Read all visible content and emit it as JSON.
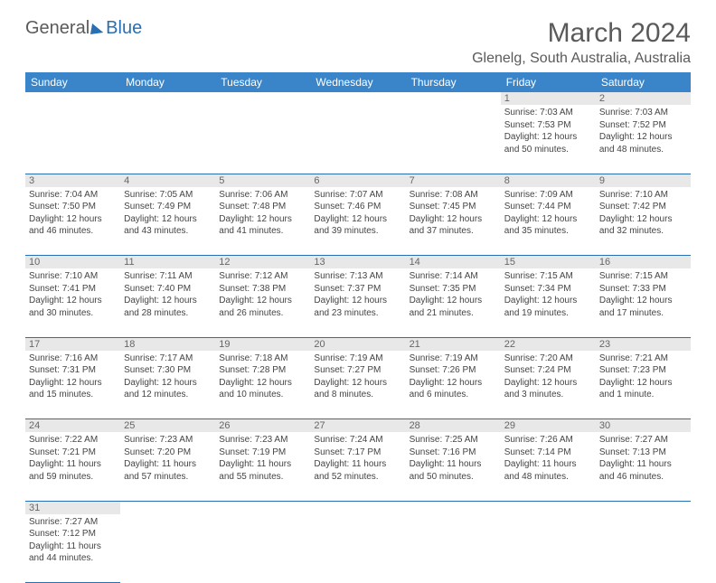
{
  "logo": {
    "general": "General",
    "blue": "Blue"
  },
  "title": "March 2024",
  "location": "Glenelg, South Australia, Australia",
  "colors": {
    "header_bg": "#3a85c9",
    "header_text": "#ffffff",
    "daynum_bg": "#e8e8e8",
    "row_border": "#2a6fb0",
    "body_text": "#444444",
    "title_text": "#5a5a5a"
  },
  "day_headers": [
    "Sunday",
    "Monday",
    "Tuesday",
    "Wednesday",
    "Thursday",
    "Friday",
    "Saturday"
  ],
  "weeks": [
    {
      "nums": [
        "",
        "",
        "",
        "",
        "",
        "1",
        "2"
      ],
      "cells": [
        null,
        null,
        null,
        null,
        null,
        {
          "sunrise": "7:03 AM",
          "sunset": "7:53 PM",
          "daylight": "12 hours and 50 minutes."
        },
        {
          "sunrise": "7:03 AM",
          "sunset": "7:52 PM",
          "daylight": "12 hours and 48 minutes."
        }
      ]
    },
    {
      "nums": [
        "3",
        "4",
        "5",
        "6",
        "7",
        "8",
        "9"
      ],
      "cells": [
        {
          "sunrise": "7:04 AM",
          "sunset": "7:50 PM",
          "daylight": "12 hours and 46 minutes."
        },
        {
          "sunrise": "7:05 AM",
          "sunset": "7:49 PM",
          "daylight": "12 hours and 43 minutes."
        },
        {
          "sunrise": "7:06 AM",
          "sunset": "7:48 PM",
          "daylight": "12 hours and 41 minutes."
        },
        {
          "sunrise": "7:07 AM",
          "sunset": "7:46 PM",
          "daylight": "12 hours and 39 minutes."
        },
        {
          "sunrise": "7:08 AM",
          "sunset": "7:45 PM",
          "daylight": "12 hours and 37 minutes."
        },
        {
          "sunrise": "7:09 AM",
          "sunset": "7:44 PM",
          "daylight": "12 hours and 35 minutes."
        },
        {
          "sunrise": "7:10 AM",
          "sunset": "7:42 PM",
          "daylight": "12 hours and 32 minutes."
        }
      ]
    },
    {
      "nums": [
        "10",
        "11",
        "12",
        "13",
        "14",
        "15",
        "16"
      ],
      "cells": [
        {
          "sunrise": "7:10 AM",
          "sunset": "7:41 PM",
          "daylight": "12 hours and 30 minutes."
        },
        {
          "sunrise": "7:11 AM",
          "sunset": "7:40 PM",
          "daylight": "12 hours and 28 minutes."
        },
        {
          "sunrise": "7:12 AM",
          "sunset": "7:38 PM",
          "daylight": "12 hours and 26 minutes."
        },
        {
          "sunrise": "7:13 AM",
          "sunset": "7:37 PM",
          "daylight": "12 hours and 23 minutes."
        },
        {
          "sunrise": "7:14 AM",
          "sunset": "7:35 PM",
          "daylight": "12 hours and 21 minutes."
        },
        {
          "sunrise": "7:15 AM",
          "sunset": "7:34 PM",
          "daylight": "12 hours and 19 minutes."
        },
        {
          "sunrise": "7:15 AM",
          "sunset": "7:33 PM",
          "daylight": "12 hours and 17 minutes."
        }
      ]
    },
    {
      "nums": [
        "17",
        "18",
        "19",
        "20",
        "21",
        "22",
        "23"
      ],
      "cells": [
        {
          "sunrise": "7:16 AM",
          "sunset": "7:31 PM",
          "daylight": "12 hours and 15 minutes."
        },
        {
          "sunrise": "7:17 AM",
          "sunset": "7:30 PM",
          "daylight": "12 hours and 12 minutes."
        },
        {
          "sunrise": "7:18 AM",
          "sunset": "7:28 PM",
          "daylight": "12 hours and 10 minutes."
        },
        {
          "sunrise": "7:19 AM",
          "sunset": "7:27 PM",
          "daylight": "12 hours and 8 minutes."
        },
        {
          "sunrise": "7:19 AM",
          "sunset": "7:26 PM",
          "daylight": "12 hours and 6 minutes."
        },
        {
          "sunrise": "7:20 AM",
          "sunset": "7:24 PM",
          "daylight": "12 hours and 3 minutes."
        },
        {
          "sunrise": "7:21 AM",
          "sunset": "7:23 PM",
          "daylight": "12 hours and 1 minute."
        }
      ]
    },
    {
      "nums": [
        "24",
        "25",
        "26",
        "27",
        "28",
        "29",
        "30"
      ],
      "cells": [
        {
          "sunrise": "7:22 AM",
          "sunset": "7:21 PM",
          "daylight": "11 hours and 59 minutes."
        },
        {
          "sunrise": "7:23 AM",
          "sunset": "7:20 PM",
          "daylight": "11 hours and 57 minutes."
        },
        {
          "sunrise": "7:23 AM",
          "sunset": "7:19 PM",
          "daylight": "11 hours and 55 minutes."
        },
        {
          "sunrise": "7:24 AM",
          "sunset": "7:17 PM",
          "daylight": "11 hours and 52 minutes."
        },
        {
          "sunrise": "7:25 AM",
          "sunset": "7:16 PM",
          "daylight": "11 hours and 50 minutes."
        },
        {
          "sunrise": "7:26 AM",
          "sunset": "7:14 PM",
          "daylight": "11 hours and 48 minutes."
        },
        {
          "sunrise": "7:27 AM",
          "sunset": "7:13 PM",
          "daylight": "11 hours and 46 minutes."
        }
      ]
    },
    {
      "nums": [
        "31",
        "",
        "",
        "",
        "",
        "",
        ""
      ],
      "cells": [
        {
          "sunrise": "7:27 AM",
          "sunset": "7:12 PM",
          "daylight": "11 hours and 44 minutes."
        },
        null,
        null,
        null,
        null,
        null,
        null
      ]
    }
  ],
  "labels": {
    "sunrise": "Sunrise:",
    "sunset": "Sunset:",
    "daylight": "Daylight:"
  }
}
